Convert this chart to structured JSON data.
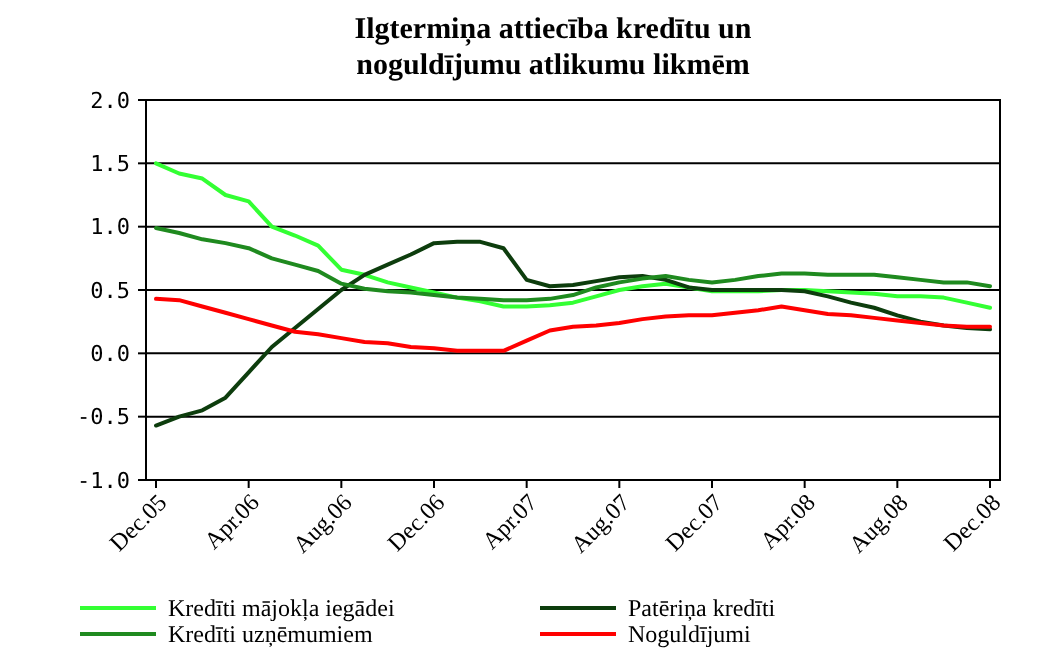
{
  "chart_data": {
    "type": "line",
    "title": "Ilgtermiņa attiecība kredītu un noguldījumu atlikumu likmēm",
    "categories": [
      "Dec.05",
      null,
      null,
      null,
      "Apr.06",
      null,
      null,
      null,
      "Aug.06",
      null,
      null,
      null,
      "Dec.06",
      null,
      null,
      null,
      "Apr.07",
      null,
      null,
      null,
      "Aug.07",
      null,
      null,
      null,
      "Dec.07",
      null,
      null,
      null,
      "Apr.08",
      null,
      null,
      null,
      "Aug.08",
      null,
      null,
      null,
      "Dec.08"
    ],
    "series": [
      {
        "name": "Kredīti mājokļa iegādei",
        "color": "#33ff33",
        "values": [
          1.5,
          1.42,
          1.38,
          1.25,
          1.2,
          1.0,
          0.93,
          0.85,
          0.66,
          0.62,
          0.56,
          0.52,
          0.48,
          0.44,
          0.41,
          0.37,
          0.37,
          0.38,
          0.4,
          0.45,
          0.5,
          0.53,
          0.55,
          0.52,
          0.49,
          0.49,
          0.49,
          0.5,
          0.5,
          0.49,
          0.48,
          0.47,
          0.45,
          0.45,
          0.44,
          0.4,
          0.36
        ]
      },
      {
        "name": "Patēriņa kredīti",
        "color": "#0d3d0d",
        "values": [
          -0.57,
          -0.5,
          -0.45,
          -0.35,
          -0.15,
          0.05,
          0.2,
          0.35,
          0.5,
          0.62,
          0.7,
          0.78,
          0.87,
          0.88,
          0.88,
          0.83,
          0.58,
          0.53,
          0.54,
          0.57,
          0.6,
          0.61,
          0.58,
          0.52,
          0.5,
          0.5,
          0.5,
          0.5,
          0.49,
          0.45,
          0.4,
          0.36,
          0.3,
          0.25,
          0.22,
          0.2,
          0.19
        ]
      },
      {
        "name": "Kredīti uzņēmumiem",
        "color": "#1f8a1f",
        "values": [
          0.99,
          0.95,
          0.9,
          0.87,
          0.83,
          0.75,
          0.7,
          0.65,
          0.55,
          0.51,
          0.49,
          0.48,
          0.46,
          0.44,
          0.43,
          0.42,
          0.42,
          0.43,
          0.46,
          0.52,
          0.56,
          0.59,
          0.61,
          0.58,
          0.56,
          0.58,
          0.61,
          0.63,
          0.63,
          0.62,
          0.62,
          0.62,
          0.6,
          0.58,
          0.56,
          0.56,
          0.53
        ]
      },
      {
        "name": "Noguldījumi",
        "color": "#ff0000",
        "values": [
          0.43,
          0.42,
          0.37,
          0.32,
          0.27,
          0.22,
          0.17,
          0.15,
          0.12,
          0.09,
          0.08,
          0.05,
          0.04,
          0.02,
          0.02,
          0.02,
          0.1,
          0.18,
          0.21,
          0.22,
          0.24,
          0.27,
          0.29,
          0.3,
          0.3,
          0.32,
          0.34,
          0.37,
          0.34,
          0.31,
          0.3,
          0.28,
          0.26,
          0.24,
          0.22,
          0.21,
          0.21
        ]
      }
    ],
    "ylim": [
      -1.0,
      2.0
    ],
    "yticks": [
      {
        "value": -1,
        "label": "-1.0"
      },
      {
        "value": -0.5,
        "label": "-0.5"
      },
      {
        "value": 0,
        "label": "0.0"
      },
      {
        "value": 0.5,
        "label": "0.5"
      },
      {
        "value": 1,
        "label": "1.0"
      },
      {
        "value": 1.5,
        "label": "1.5"
      },
      {
        "value": 2,
        "label": "2.0"
      }
    ],
    "grid": "y",
    "legend": "bottom"
  }
}
